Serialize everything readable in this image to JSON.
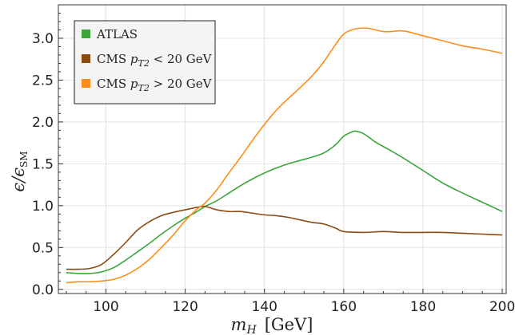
{
  "chart_data": {
    "type": "line",
    "xlabel_main": "m",
    "xlabel_sub": "H",
    "xlabel_unit": "[GeV]",
    "ylabel_main": "ϵ/ϵ",
    "ylabel_sub": "SM",
    "xlim": [
      88,
      201
    ],
    "ylim": [
      -0.05,
      3.4
    ],
    "xticks": [
      100,
      120,
      140,
      160,
      180,
      200
    ],
    "yticks": [
      0.0,
      0.5,
      1.0,
      1.5,
      2.0,
      2.5,
      3.0
    ],
    "grid": true,
    "legend_position": "top-left",
    "series": [
      {
        "name": "ATLAS",
        "color": "#3aa63a",
        "x": [
          90,
          93,
          96,
          99,
          102,
          105,
          108,
          111,
          114,
          117,
          120,
          123,
          125,
          128,
          131,
          134,
          137,
          140,
          143,
          146,
          149,
          152,
          155,
          158,
          160,
          162,
          163,
          165,
          168,
          171,
          175,
          180,
          185,
          190,
          195,
          200
        ],
        "y": [
          0.2,
          0.19,
          0.19,
          0.21,
          0.26,
          0.35,
          0.45,
          0.55,
          0.66,
          0.76,
          0.85,
          0.93,
          0.99,
          1.06,
          1.15,
          1.24,
          1.32,
          1.39,
          1.45,
          1.5,
          1.54,
          1.58,
          1.63,
          1.73,
          1.83,
          1.88,
          1.89,
          1.86,
          1.76,
          1.68,
          1.57,
          1.42,
          1.27,
          1.15,
          1.04,
          0.93
        ]
      },
      {
        "name": "CMS p_T2 < 20 GeV",
        "label_pre": "CMS ",
        "label_var": "p",
        "label_sub": "T2",
        "label_post": " < 20 GeV",
        "color": "#8b4a10",
        "x": [
          90,
          93,
          96,
          99,
          102,
          105,
          108,
          111,
          114,
          117,
          120,
          123,
          125,
          128,
          131,
          134,
          137,
          140,
          143,
          146,
          149,
          152,
          155,
          158,
          160,
          165,
          170,
          175,
          180,
          185,
          190,
          195,
          200
        ],
        "y": [
          0.24,
          0.24,
          0.25,
          0.3,
          0.42,
          0.56,
          0.71,
          0.81,
          0.88,
          0.92,
          0.95,
          0.98,
          0.99,
          0.95,
          0.93,
          0.93,
          0.91,
          0.89,
          0.88,
          0.86,
          0.83,
          0.8,
          0.78,
          0.73,
          0.69,
          0.68,
          0.69,
          0.68,
          0.68,
          0.68,
          0.67,
          0.66,
          0.65
        ]
      },
      {
        "name": "CMS p_T2 > 20 GeV",
        "label_pre": "CMS ",
        "label_var": "p",
        "label_sub": "T2",
        "label_post": " > 20 GeV",
        "color": "#ff8c1a",
        "x": [
          90,
          93,
          96,
          99,
          102,
          105,
          108,
          111,
          114,
          117,
          120,
          123,
          125,
          128,
          131,
          134,
          137,
          140,
          143,
          146,
          149,
          152,
          155,
          158,
          160,
          162,
          164,
          166,
          168,
          170,
          172,
          174,
          176,
          180,
          185,
          190,
          195,
          200
        ],
        "y": [
          0.08,
          0.09,
          0.09,
          0.1,
          0.12,
          0.17,
          0.25,
          0.36,
          0.5,
          0.65,
          0.82,
          0.96,
          1.03,
          1.19,
          1.39,
          1.58,
          1.78,
          1.97,
          2.14,
          2.28,
          2.41,
          2.55,
          2.72,
          2.93,
          3.05,
          3.1,
          3.12,
          3.12,
          3.1,
          3.08,
          3.08,
          3.09,
          3.08,
          3.03,
          2.97,
          2.91,
          2.87,
          2.82
        ]
      }
    ]
  }
}
